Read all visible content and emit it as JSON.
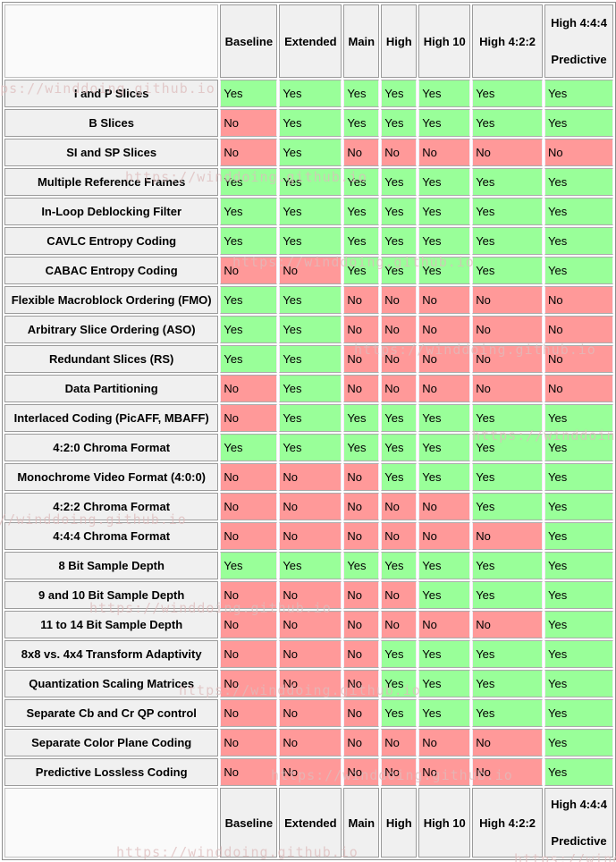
{
  "table": {
    "columns": [
      "Baseline",
      "Extended",
      "Main",
      "High",
      "High 10",
      "High 4:2:2",
      "High 4:4:4 Predictive"
    ],
    "header_last_lines": [
      "High 4:4:4",
      "Predictive"
    ],
    "rows": [
      {
        "feature": "I and P Slices",
        "values": [
          "Yes",
          "Yes",
          "Yes",
          "Yes",
          "Yes",
          "Yes",
          "Yes"
        ]
      },
      {
        "feature": "B Slices",
        "values": [
          "No",
          "Yes",
          "Yes",
          "Yes",
          "Yes",
          "Yes",
          "Yes"
        ]
      },
      {
        "feature": "SI and SP Slices",
        "values": [
          "No",
          "Yes",
          "No",
          "No",
          "No",
          "No",
          "No"
        ]
      },
      {
        "feature": "Multiple Reference Frames",
        "values": [
          "Yes",
          "Yes",
          "Yes",
          "Yes",
          "Yes",
          "Yes",
          "Yes"
        ]
      },
      {
        "feature": "In-Loop Deblocking Filter",
        "values": [
          "Yes",
          "Yes",
          "Yes",
          "Yes",
          "Yes",
          "Yes",
          "Yes"
        ]
      },
      {
        "feature": "CAVLC Entropy Coding",
        "values": [
          "Yes",
          "Yes",
          "Yes",
          "Yes",
          "Yes",
          "Yes",
          "Yes"
        ]
      },
      {
        "feature": "CABAC Entropy Coding",
        "values": [
          "No",
          "No",
          "Yes",
          "Yes",
          "Yes",
          "Yes",
          "Yes"
        ]
      },
      {
        "feature": "Flexible Macroblock Ordering (FMO)",
        "values": [
          "Yes",
          "Yes",
          "No",
          "No",
          "No",
          "No",
          "No"
        ]
      },
      {
        "feature": "Arbitrary Slice Ordering (ASO)",
        "values": [
          "Yes",
          "Yes",
          "No",
          "No",
          "No",
          "No",
          "No"
        ]
      },
      {
        "feature": "Redundant Slices (RS)",
        "values": [
          "Yes",
          "Yes",
          "No",
          "No",
          "No",
          "No",
          "No"
        ]
      },
      {
        "feature": "Data Partitioning",
        "values": [
          "No",
          "Yes",
          "No",
          "No",
          "No",
          "No",
          "No"
        ]
      },
      {
        "feature": "Interlaced Coding (PicAFF, MBAFF)",
        "values": [
          "No",
          "Yes",
          "Yes",
          "Yes",
          "Yes",
          "Yes",
          "Yes"
        ]
      },
      {
        "feature": "4:2:0 Chroma Format",
        "values": [
          "Yes",
          "Yes",
          "Yes",
          "Yes",
          "Yes",
          "Yes",
          "Yes"
        ]
      },
      {
        "feature": "Monochrome Video Format (4:0:0)",
        "values": [
          "No",
          "No",
          "No",
          "Yes",
          "Yes",
          "Yes",
          "Yes"
        ]
      },
      {
        "feature": "4:2:2 Chroma Format",
        "values": [
          "No",
          "No",
          "No",
          "No",
          "No",
          "Yes",
          "Yes"
        ]
      },
      {
        "feature": "4:4:4 Chroma Format",
        "values": [
          "No",
          "No",
          "No",
          "No",
          "No",
          "No",
          "Yes"
        ]
      },
      {
        "feature": "8 Bit Sample Depth",
        "values": [
          "Yes",
          "Yes",
          "Yes",
          "Yes",
          "Yes",
          "Yes",
          "Yes"
        ]
      },
      {
        "feature": "9 and 10 Bit Sample Depth",
        "values": [
          "No",
          "No",
          "No",
          "No",
          "Yes",
          "Yes",
          "Yes"
        ]
      },
      {
        "feature": "11 to 14 Bit Sample Depth",
        "values": [
          "No",
          "No",
          "No",
          "No",
          "No",
          "No",
          "Yes"
        ]
      },
      {
        "feature": "8x8 vs. 4x4 Transform Adaptivity",
        "values": [
          "No",
          "No",
          "No",
          "Yes",
          "Yes",
          "Yes",
          "Yes"
        ]
      },
      {
        "feature": "Quantization Scaling Matrices",
        "values": [
          "No",
          "No",
          "No",
          "Yes",
          "Yes",
          "Yes",
          "Yes"
        ]
      },
      {
        "feature": "Separate Cb and Cr QP control",
        "values": [
          "No",
          "No",
          "No",
          "Yes",
          "Yes",
          "Yes",
          "Yes"
        ]
      },
      {
        "feature": "Separate Color Plane Coding",
        "values": [
          "No",
          "No",
          "No",
          "No",
          "No",
          "No",
          "Yes"
        ]
      },
      {
        "feature": "Predictive Lossless Coding",
        "values": [
          "No",
          "No",
          "No",
          "No",
          "No",
          "No",
          "Yes"
        ]
      }
    ]
  },
  "watermark": {
    "text": "https://winddoing.github.io"
  },
  "colors": {
    "yes_cell": "#99ff99",
    "no_cell": "#ff9999",
    "header_bg": "#f0f0f0",
    "border": "#9b9b9b"
  }
}
